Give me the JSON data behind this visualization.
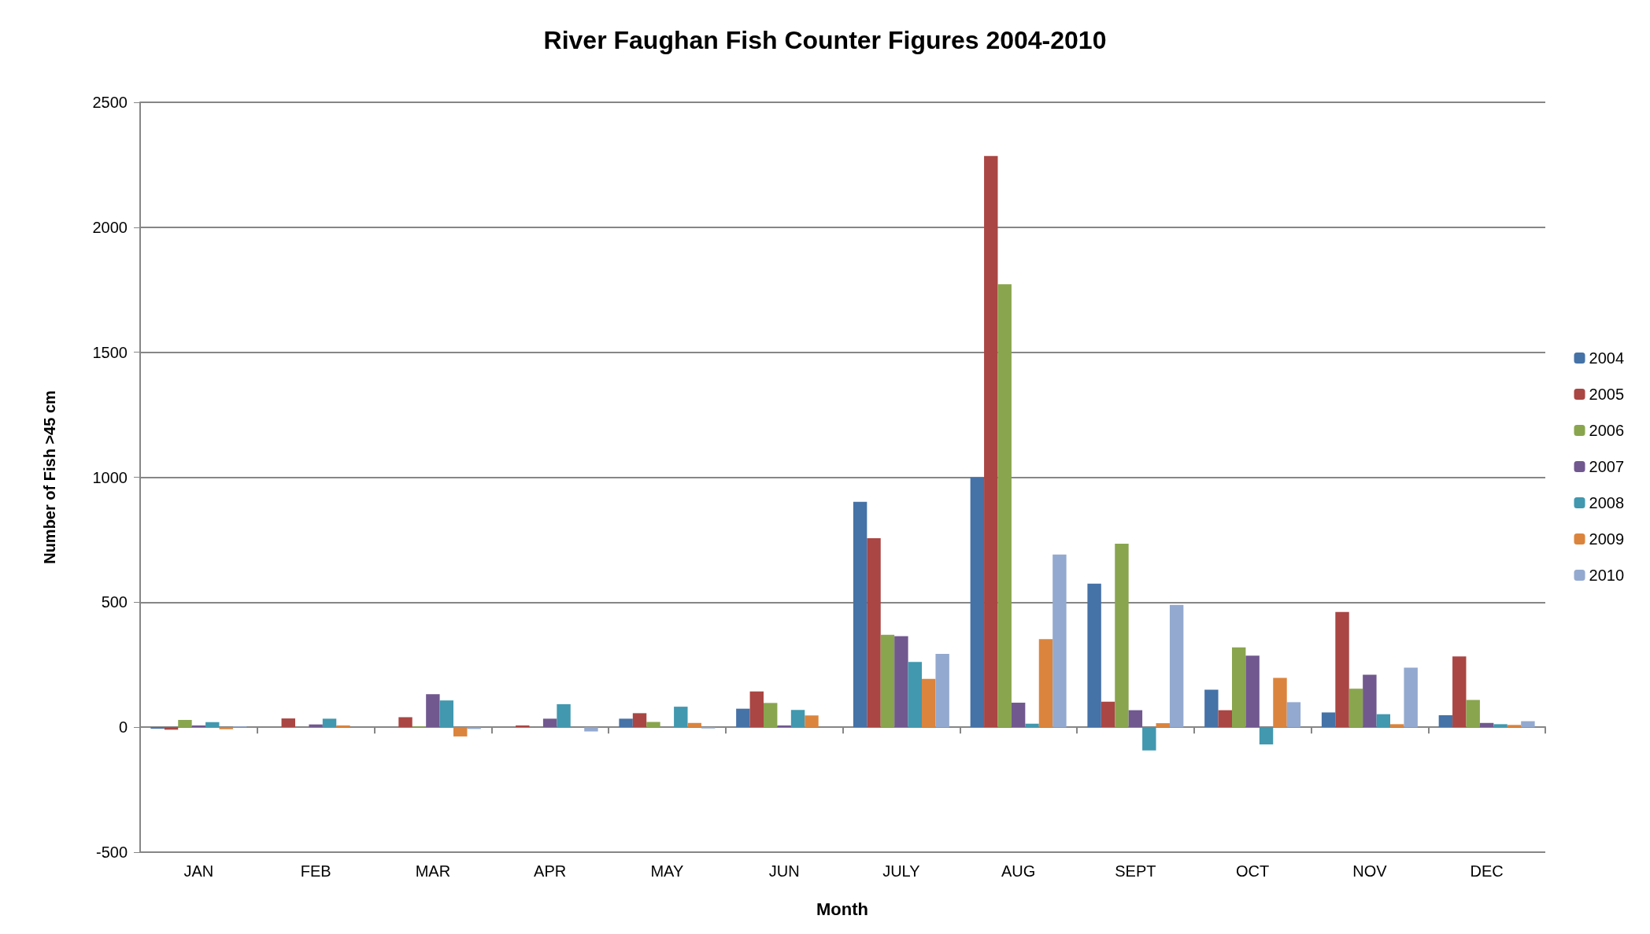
{
  "chart_data": {
    "type": "bar",
    "title": "River Faughan Fish Counter Figures 2004-2010",
    "xlabel": "Month",
    "ylabel": "Number of Fish >45 cm",
    "categories": [
      "JAN",
      "FEB",
      "MAR",
      "APR",
      "MAY",
      "JUN",
      "JULY",
      "AUG",
      "SEPT",
      "OCT",
      "NOV",
      "DEC"
    ],
    "series": [
      {
        "name": "2004",
        "color": "#4572a7",
        "values": [
          -6,
          0,
          0,
          null,
          34,
          74,
          902,
          1000,
          574,
          150,
          59,
          48
        ]
      },
      {
        "name": "2005",
        "color": "#aa4643",
        "values": [
          -10,
          35,
          40,
          7,
          56,
          143,
          756,
          2285,
          102,
          68,
          461,
          283
        ]
      },
      {
        "name": "2006",
        "color": "#89a54e",
        "values": [
          29,
          0,
          3,
          0,
          21,
          97,
          370,
          1772,
          734,
          319,
          154,
          109
        ]
      },
      {
        "name": "2007",
        "color": "#71588f",
        "values": [
          7,
          11,
          132,
          34,
          0,
          7,
          364,
          98,
          68,
          286,
          210,
          17
        ]
      },
      {
        "name": "2008",
        "color": "#4198af",
        "values": [
          20,
          34,
          107,
          92,
          82,
          69,
          261,
          14,
          -93,
          -69,
          52,
          12
        ]
      },
      {
        "name": "2009",
        "color": "#db843d",
        "values": [
          -8,
          7,
          -37,
          0,
          17,
          47,
          193,
          352,
          16,
          197,
          12,
          9
        ]
      },
      {
        "name": "2010",
        "color": "#93a9cf",
        "values": [
          3,
          0,
          -7,
          -17,
          -5,
          0,
          293,
          691,
          489,
          100,
          238,
          24
        ]
      }
    ],
    "ylim": [
      -500,
      2500
    ],
    "yticks": [
      -500,
      0,
      500,
      {
        "value": 1000,
        "label": "1000"
      },
      {
        "value": 1500,
        "label": "1500"
      },
      {
        "value": 2000,
        "label": "2000"
      },
      {
        "value": 2500,
        "label": "2500"
      }
    ],
    "grid": "y",
    "legend": "right"
  }
}
